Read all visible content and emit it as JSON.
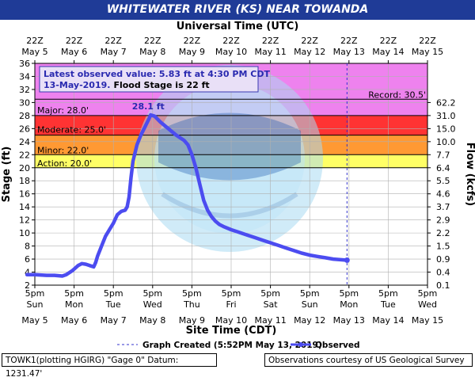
{
  "title": "WHITEWATER RIVER (KS) NEAR TOWANDA",
  "top_axis_title": "Universal Time (UTC)",
  "bottom_axis_title": "Site Time (CDT)",
  "footer_left": "TOWK1(plotting HGIRG) \"Gage 0\" Datum: 1231.47'",
  "footer_right": "Observations courtesy of US Geological Survey",
  "colors": {
    "title_bg": "#1f3b97",
    "major": "#ee82ee",
    "major_band": "#ff3333",
    "moderate": "#ff9933",
    "minor": "#ffff66",
    "series": "#4c4cf0"
  },
  "chart_data": {
    "type": "line",
    "title": "WHITEWATER RIVER (KS) NEAR TOWANDA",
    "xlabel": "Site Time (CDT)",
    "ylabel": "Stage (ft)",
    "y2label": "Flow (kcfs)",
    "top_xlabel": "Universal Time (UTC)",
    "ylim": [
      2,
      36
    ],
    "y_ticks": [
      2,
      4,
      6,
      8,
      10,
      12,
      14,
      16,
      18,
      20,
      22,
      24,
      26,
      28,
      30,
      32,
      34,
      36
    ],
    "flow_ticks": [
      {
        "stage": 4,
        "label": "0.4"
      },
      {
        "stage": 6,
        "label": "0.9"
      },
      {
        "stage": 8,
        "label": "1.5"
      },
      {
        "stage": 10,
        "label": "2.2"
      },
      {
        "stage": 12,
        "label": "2.9"
      },
      {
        "stage": 14,
        "label": "3.7"
      },
      {
        "stage": 16,
        "label": "4.6"
      },
      {
        "stage": 18,
        "label": "5.5"
      },
      {
        "stage": 20,
        "label": "6.4"
      },
      {
        "stage": 22,
        "label": "7.7"
      },
      {
        "stage": 24,
        "label": "10.0"
      },
      {
        "stage": 26,
        "label": "15.0"
      },
      {
        "stage": 28,
        "label": "31.0"
      },
      {
        "stage": 30,
        "label": "62.2"
      }
    ],
    "flow_bottom_label": "0.1",
    "x_start": "May 5 5pm",
    "x_ticks_bottom": [
      {
        "time": "5pm",
        "day": "Sun",
        "date": "May 5"
      },
      {
        "time": "5pm",
        "day": "Mon",
        "date": "May 6"
      },
      {
        "time": "5pm",
        "day": "Tue",
        "date": "May 7"
      },
      {
        "time": "5pm",
        "day": "Wed",
        "date": "May 8"
      },
      {
        "time": "5pm",
        "day": "Thu",
        "date": "May 9"
      },
      {
        "time": "5pm",
        "day": "Fri",
        "date": "May 10"
      },
      {
        "time": "5pm",
        "day": "Sat",
        "date": "May 11"
      },
      {
        "time": "5pm",
        "day": "Sun",
        "date": "May 12"
      },
      {
        "time": "5pm",
        "day": "Mon",
        "date": "May 13"
      },
      {
        "time": "5pm",
        "day": "Tue",
        "date": "May 14"
      },
      {
        "time": "5pm",
        "day": "Wed",
        "date": "May 15"
      }
    ],
    "x_ticks_top": [
      {
        "time": "22Z",
        "date": "May 5"
      },
      {
        "time": "22Z",
        "date": "May 6"
      },
      {
        "time": "22Z",
        "date": "May 7"
      },
      {
        "time": "22Z",
        "date": "May 8"
      },
      {
        "time": "22Z",
        "date": "May 9"
      },
      {
        "time": "22Z",
        "date": "May 10"
      },
      {
        "time": "22Z",
        "date": "May 11"
      },
      {
        "time": "22Z",
        "date": "May 12"
      },
      {
        "time": "22Z",
        "date": "May 13"
      },
      {
        "time": "22Z",
        "date": "May 14"
      },
      {
        "time": "22Z",
        "date": "May 15"
      }
    ],
    "thresholds": {
      "action": {
        "label": "Action: 20.0'",
        "value": 20.0
      },
      "minor": {
        "label": "Minor: 22.0'",
        "value": 22.0
      },
      "moderate": {
        "label": "Moderate: 25.0'",
        "value": 25.0
      },
      "major": {
        "label": "Major: 28.0'",
        "value": 28.0
      },
      "record": {
        "label": "Record: 30.5'",
        "value": 30.5
      }
    },
    "latest_box": {
      "line1": "Latest observed value: 5.83 ft at 4:30 PM CDT",
      "line2_date": "13-May-2019.",
      "line2_rest": "Flood Stage is 22 ft"
    },
    "peak_label": "28.1 ft",
    "legend": {
      "created": "Graph Created (5:52PM May 13, 2019)",
      "observed": "Observed"
    },
    "series": [
      {
        "name": "Observed",
        "points": [
          [
            -0.2,
            3.6
          ],
          [
            0.0,
            3.6
          ],
          [
            0.3,
            3.5
          ],
          [
            0.5,
            3.5
          ],
          [
            0.7,
            3.4
          ],
          [
            0.8,
            3.6
          ],
          [
            0.95,
            4.2
          ],
          [
            1.1,
            5.0
          ],
          [
            1.2,
            5.3
          ],
          [
            1.3,
            5.2
          ],
          [
            1.4,
            5.0
          ],
          [
            1.5,
            4.8
          ],
          [
            1.55,
            5.5
          ],
          [
            1.6,
            6.5
          ],
          [
            1.7,
            8.0
          ],
          [
            1.8,
            9.5
          ],
          [
            1.9,
            10.5
          ],
          [
            2.0,
            11.5
          ],
          [
            2.1,
            12.8
          ],
          [
            2.2,
            13.3
          ],
          [
            2.3,
            13.5
          ],
          [
            2.35,
            14.0
          ],
          [
            2.4,
            15.5
          ],
          [
            2.45,
            18.5
          ],
          [
            2.5,
            21.0
          ],
          [
            2.6,
            23.5
          ],
          [
            2.7,
            25.0
          ],
          [
            2.8,
            26.2
          ],
          [
            2.9,
            27.4
          ],
          [
            2.95,
            28.1
          ],
          [
            3.05,
            27.9
          ],
          [
            3.2,
            27.0
          ],
          [
            3.4,
            26.0
          ],
          [
            3.6,
            25.0
          ],
          [
            3.8,
            24.2
          ],
          [
            3.9,
            23.5
          ],
          [
            4.0,
            22.0
          ],
          [
            4.1,
            20.0
          ],
          [
            4.2,
            17.5
          ],
          [
            4.3,
            15.0
          ],
          [
            4.4,
            13.5
          ],
          [
            4.5,
            12.5
          ],
          [
            4.6,
            11.8
          ],
          [
            4.7,
            11.3
          ],
          [
            4.8,
            11.0
          ],
          [
            5.0,
            10.5
          ],
          [
            5.2,
            10.1
          ],
          [
            5.4,
            9.7
          ],
          [
            5.6,
            9.3
          ],
          [
            5.8,
            8.9
          ],
          [
            6.0,
            8.5
          ],
          [
            6.2,
            8.1
          ],
          [
            6.4,
            7.7
          ],
          [
            6.6,
            7.3
          ],
          [
            6.8,
            6.9
          ],
          [
            7.0,
            6.6
          ],
          [
            7.2,
            6.4
          ],
          [
            7.4,
            6.2
          ],
          [
            7.6,
            6.0
          ],
          [
            7.95,
            5.83
          ]
        ]
      }
    ]
  }
}
